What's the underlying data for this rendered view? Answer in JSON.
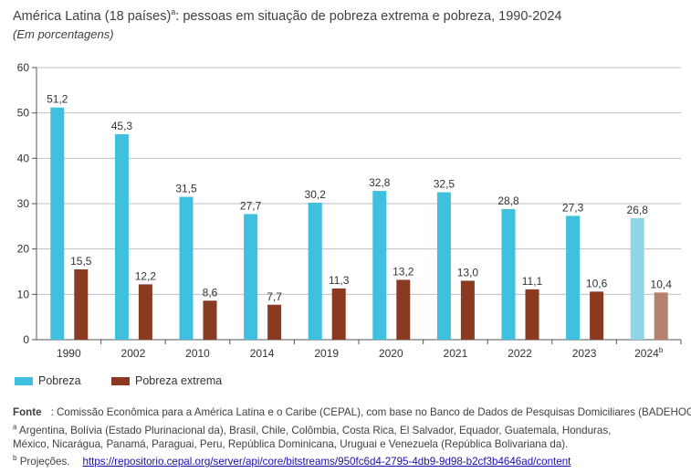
{
  "title": {
    "text": "América Latina (18 países)",
    "sup": "a",
    "rest": ": pessoas em situação de pobreza extrema e pobreza, 1990-2024"
  },
  "subtitle": "(Em porcentagens)",
  "chart_data": {
    "type": "bar",
    "categories": [
      "1990",
      "2002",
      "2010",
      "2014",
      "2019",
      "2020",
      "2021",
      "2022",
      "2023",
      "2024"
    ],
    "category_sup": {
      "2024": "b"
    },
    "projection_category": "2024",
    "series": [
      {
        "name": "Pobreza",
        "values": [
          51.2,
          45.3,
          31.5,
          27.7,
          30.2,
          32.8,
          32.5,
          28.8,
          27.3,
          26.8
        ],
        "labels": [
          "51,2",
          "45,3",
          "31,5",
          "27,7",
          "30,2",
          "32,8",
          "32,5",
          "28,8",
          "27,3",
          "26,8"
        ],
        "color": "#3fc0de",
        "projection_color": "#8fd5e8"
      },
      {
        "name": "Pobreza extrema",
        "values": [
          15.5,
          12.2,
          8.6,
          7.7,
          11.3,
          13.2,
          13.0,
          11.1,
          10.6,
          10.4
        ],
        "labels": [
          "15,5",
          "12,2",
          "8,6",
          "7,7",
          "11,3",
          "13,2",
          "13,0",
          "11,1",
          "10,6",
          "10,4"
        ],
        "color": "#8b3a22",
        "projection_color": "#b5816d"
      }
    ],
    "ylim": [
      0,
      60
    ],
    "yticks": [
      0,
      10,
      20,
      30,
      40,
      50,
      60
    ],
    "grid": true,
    "legend_position": "bottom-left"
  },
  "legend": [
    {
      "label": "Pobreza",
      "color": "#3fc0de"
    },
    {
      "label": "Pobreza extrema",
      "color": "#8b3a22"
    }
  ],
  "notes": {
    "source_label": "Fonte",
    "source_text": ": Comissão Econômica para a América Latina e o Caribe (CEPAL), com base no Banco de Dados de Pesquisas Domiciliares (BADEHOG).",
    "note_a_mark": "a",
    "note_a_line1": "Argentina, Bolívia (Estado Plurinacional da), Brasil, Chile, Colômbia, Costa Rica, El Salvador, Equador, Guatemala, Honduras,",
    "note_a_line2": "México, Nicarágua, Panamá, Paraguai, Peru, República Dominicana, Uruguai e Venezuela (República Bolivariana da).",
    "note_b_mark": "b",
    "note_b_text": "Projeções.",
    "link": "https://repositorio.cepal.org/server/api/core/bitstreams/950fc6d4-2795-4db9-9d98-b2cf3b4646ad/content"
  }
}
